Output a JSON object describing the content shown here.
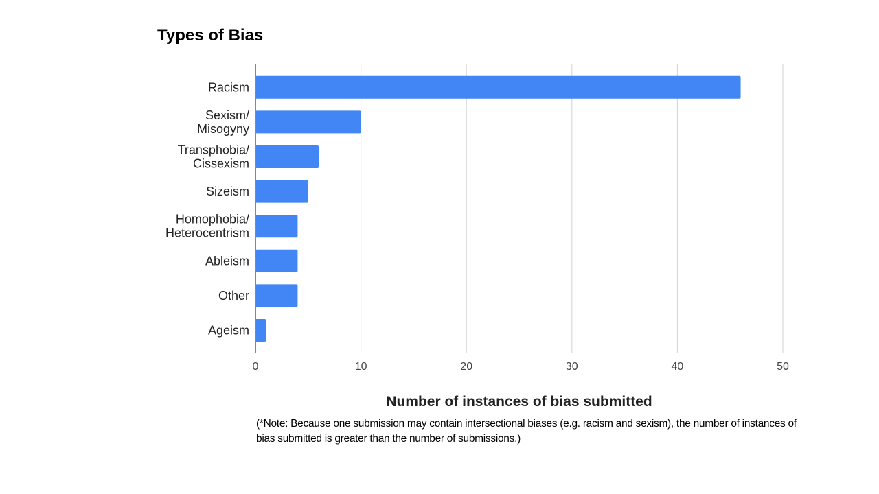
{
  "title": "Types of Bias",
  "note": "(*Note: Because one submission may contain intersectional biases (e.g. racism and sexism), the number of instances of bias submitted is greater than the number of submissions.)",
  "chart_data": {
    "type": "bar",
    "orientation": "horizontal",
    "title": "Types of Bias",
    "xlabel": "Number of instances of bias submitted",
    "ylabel": "",
    "categories": [
      [
        "Racism"
      ],
      [
        "Sexism/",
        "Misogyny"
      ],
      [
        "Transphobia/",
        "Cissexism"
      ],
      [
        "Sizeism"
      ],
      [
        "Homophobia/",
        "Heterocentrism"
      ],
      [
        "Ableism"
      ],
      [
        "Other"
      ],
      [
        "Ageism"
      ]
    ],
    "values": [
      46,
      10,
      6,
      5,
      4,
      4,
      4,
      1
    ],
    "xlim": [
      0,
      50
    ],
    "xticks": [
      0,
      10,
      20,
      30,
      40,
      50
    ],
    "grid": true,
    "legend": "none",
    "bar_color": "#4285f4"
  }
}
